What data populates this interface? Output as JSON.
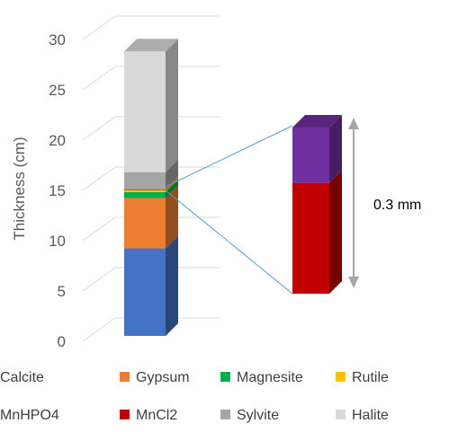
{
  "chart_data": {
    "type": "bar",
    "stacked": true,
    "style": "3d-column",
    "ylabel": "Thickness (cm)",
    "ylim": [
      0,
      30
    ],
    "yticks": [
      "0",
      "5",
      "10",
      "15",
      "20",
      "25",
      "30"
    ],
    "grid": true,
    "legend_position": "bottom",
    "series": [
      {
        "name": "Calcite",
        "values": [
          8.7
        ],
        "color": "#4472c4"
      },
      {
        "name": "Gypsum",
        "values": [
          5.0
        ],
        "color": "#ed7d31"
      },
      {
        "name": "Magnesite",
        "values": [
          0.6
        ],
        "color": "#00b050"
      },
      {
        "name": "Rutile",
        "values": [
          0.25
        ],
        "color": "#ffc000"
      },
      {
        "name": "MnHPO4",
        "values": [
          0.01
        ],
        "color": "#7030a0"
      },
      {
        "name": "MnCl2",
        "values": [
          0.02
        ],
        "color": "#c00000"
      },
      {
        "name": "Sylvite",
        "values": [
          1.7
        ],
        "color": "#a5a5a5"
      },
      {
        "name": "Halite",
        "values": [
          12.0
        ],
        "color": "#d9d9d9"
      }
    ],
    "inset": {
      "label": "0.3 mm",
      "series": [
        "MnCl2",
        "MnHPO4"
      ]
    }
  }
}
